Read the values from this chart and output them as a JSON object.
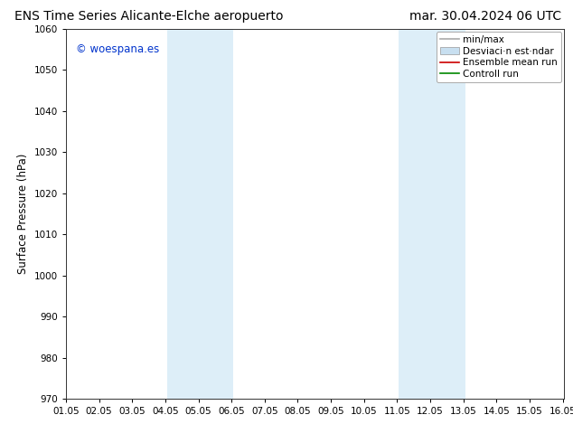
{
  "title_left": "ENS Time Series Alicante-Elche aeropuerto",
  "title_right": "mar. 30.04.2024 06 UTC",
  "ylabel": "Surface Pressure (hPa)",
  "xlim": [
    1.0,
    16.05
  ],
  "ylim": [
    970,
    1060
  ],
  "yticks": [
    970,
    980,
    990,
    1000,
    1010,
    1020,
    1030,
    1040,
    1050,
    1060
  ],
  "xtick_labels": [
    "01.05",
    "02.05",
    "03.05",
    "04.05",
    "05.05",
    "06.05",
    "07.05",
    "08.05",
    "09.05",
    "10.05",
    "11.05",
    "12.05",
    "13.05",
    "14.05",
    "15.05",
    "16.05"
  ],
  "xtick_positions": [
    1.0,
    2.0,
    3.0,
    4.0,
    5.0,
    6.0,
    7.0,
    8.0,
    9.0,
    10.0,
    11.0,
    12.0,
    13.0,
    14.0,
    15.0,
    16.0
  ],
  "shaded_regions": [
    {
      "xmin": 4.05,
      "xmax": 6.05,
      "color": "#ddeef8"
    },
    {
      "xmin": 11.05,
      "xmax": 13.05,
      "color": "#ddeef8"
    }
  ],
  "watermark_text": "© woespana.es",
  "watermark_color": "#0033cc",
  "background_color": "#ffffff",
  "legend_labels": [
    "min/max",
    "Desviaci·n est·ndar",
    "Ensemble mean run",
    "Controll run"
  ],
  "legend_colors": [
    "#aaaaaa",
    "#c8dff0",
    "#cc0000",
    "#008800"
  ],
  "title_fontsize": 10,
  "tick_fontsize": 7.5,
  "ylabel_fontsize": 8.5,
  "legend_fontsize": 7.5
}
